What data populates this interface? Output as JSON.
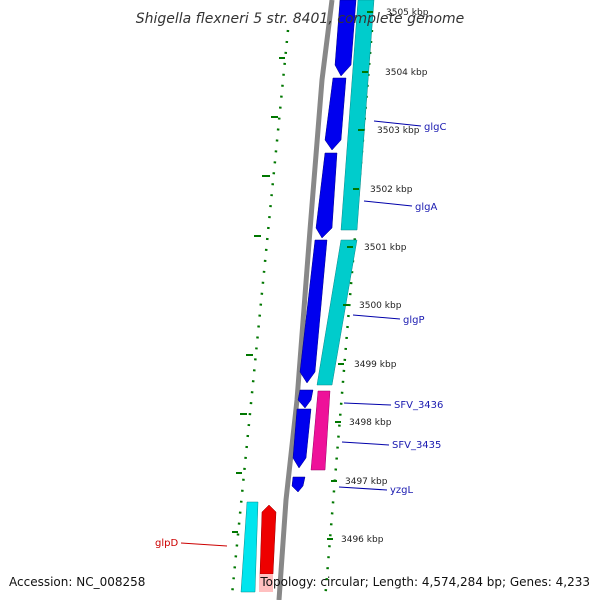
{
  "title": "Shigella flexneri 5 str. 8401, complete genome",
  "footer": {
    "accession": "Accession: NC_008258",
    "summary": "Topology: circular; Length: 4,574,284 bp; Genes: 4,233"
  },
  "ticks": [
    "3505 kbp",
    "3504 kbp",
    "3503 kbp",
    "3502 kbp",
    "3501 kbp",
    "3500 kbp",
    "3499 kbp",
    "3498 kbp",
    "3497 kbp",
    "3496 kbp"
  ],
  "genes": [
    {
      "label": "glgC",
      "color": "#0000aa"
    },
    {
      "label": "glgA",
      "color": "#0000aa"
    },
    {
      "label": "glgP",
      "color": "#0000aa"
    },
    {
      "label": "SFV_3436",
      "color": "#0000aa"
    },
    {
      "label": "SFV_3435",
      "color": "#0000aa"
    },
    {
      "label": "yzgL",
      "color": "#0000aa"
    },
    {
      "label": "glpD",
      "color": "#cc0000"
    }
  ],
  "colors": {
    "backbone": "#888888",
    "cds_blue": "#0000ee",
    "cds_cyan": "#00cccc",
    "cds_magenta": "#ee1199",
    "cds_red": "#ee0000",
    "cds_pink": "#ffc0c0",
    "gc_dots": "#007700"
  }
}
